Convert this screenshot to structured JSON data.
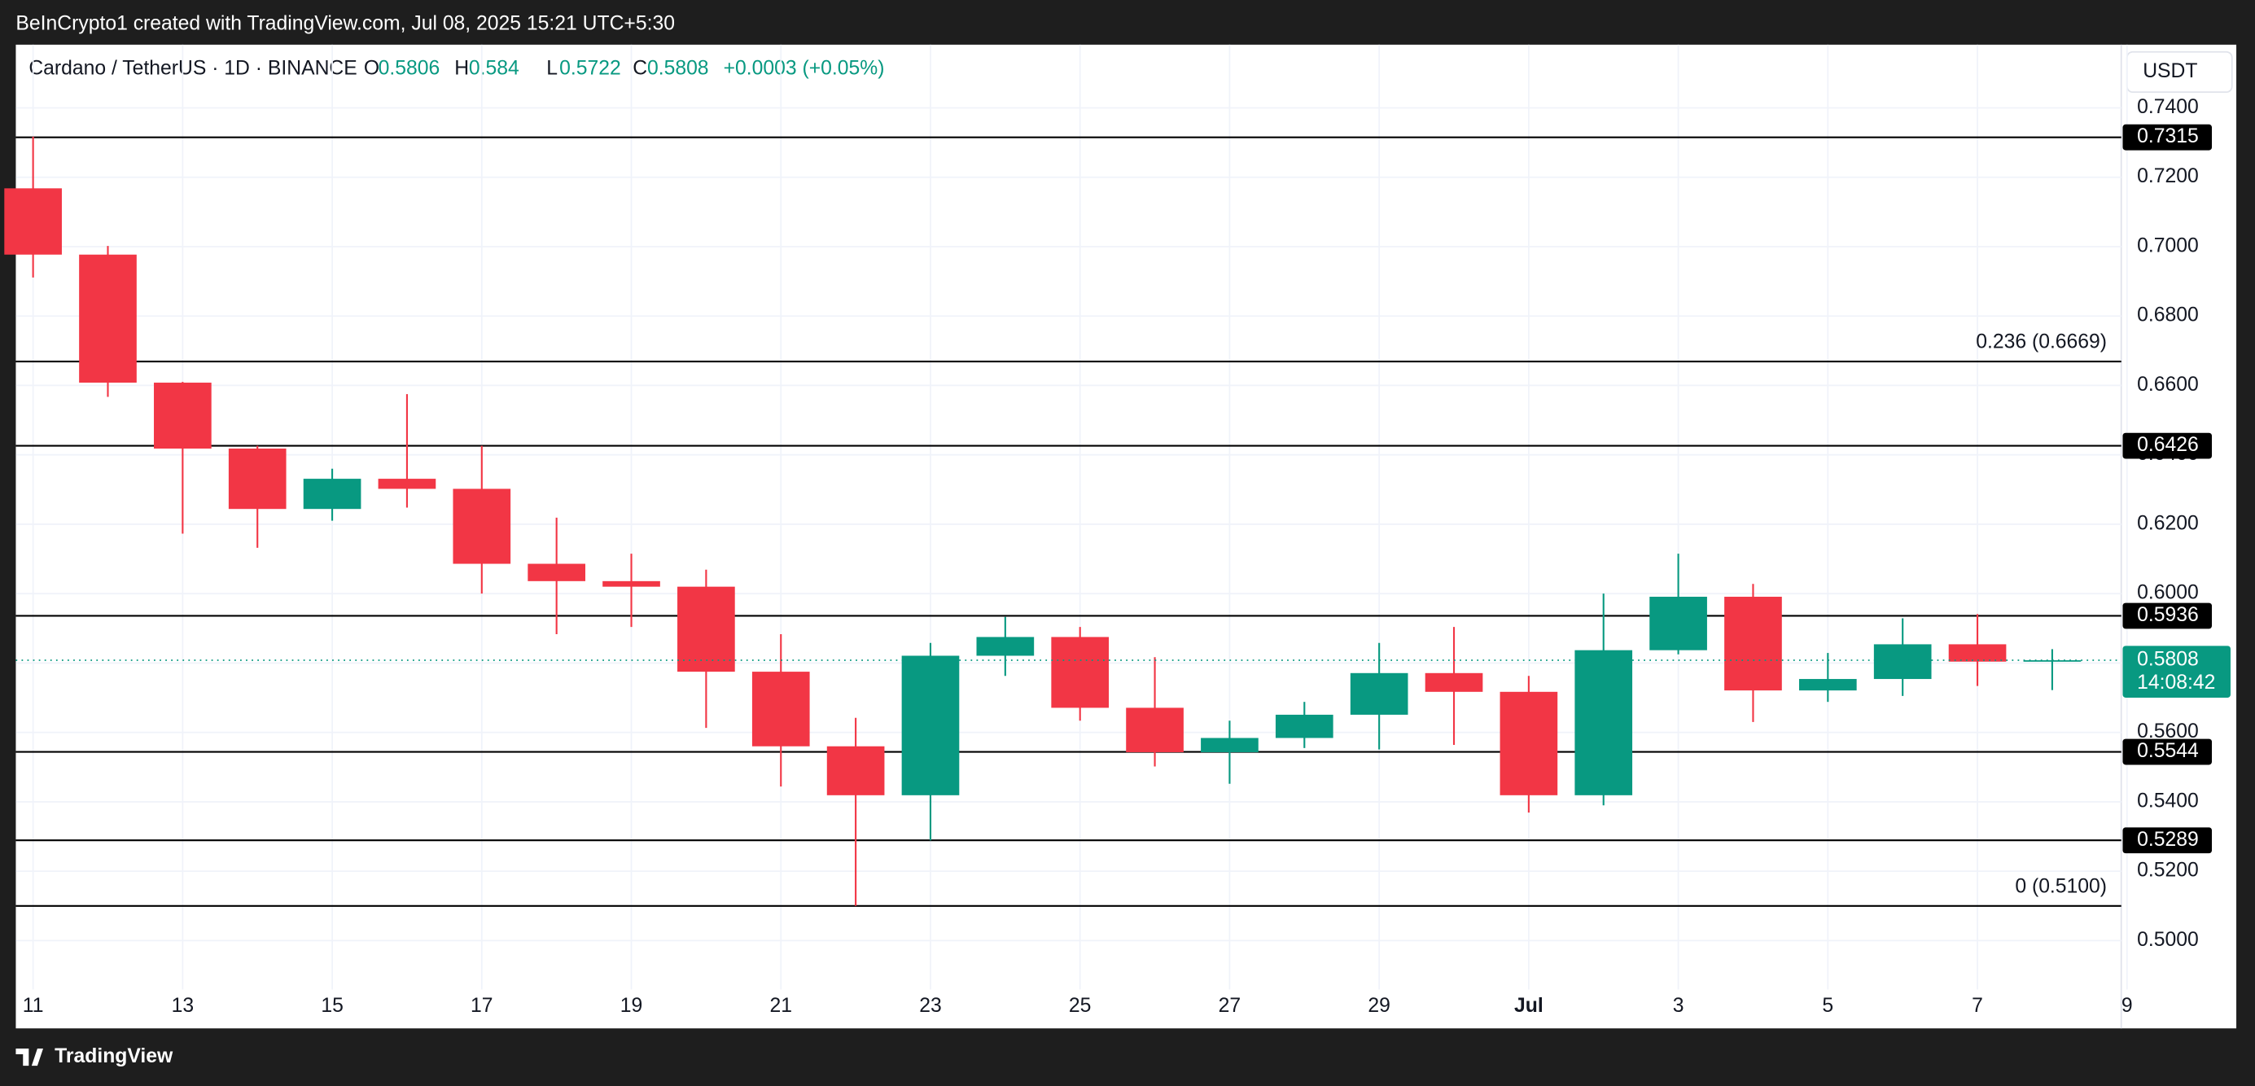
{
  "header": {
    "attribution": "BeInCrypto1 created with TradingView.com, Jul 08, 2025 15:21 UTC+5:30",
    "symbol": "Cardano / TetherUS · 1D · BINANCE",
    "open_label": "O",
    "high_label": "H",
    "low_label": "L",
    "close_label": "C",
    "change": "+0.0003 (+0.05%)",
    "currency": "USDT",
    "brand": "TradingView"
  },
  "chart_data": {
    "type": "candlestick",
    "categories": [
      "11",
      null,
      "13",
      null,
      "15",
      null,
      "17",
      null,
      "19",
      null,
      "21",
      null,
      "23",
      null,
      "25",
      null,
      "27",
      null,
      "29",
      null,
      "Jul",
      null,
      "3",
      null,
      "5",
      null,
      "7",
      null,
      "9"
    ],
    "open": [
      0.7168,
      0.6977,
      0.6608,
      0.6418,
      0.6244,
      0.6331,
      0.6302,
      0.6086,
      0.6036,
      0.602,
      0.5775,
      0.556,
      0.5419,
      0.5821,
      0.5875,
      0.5671,
      0.5543,
      0.5584,
      0.5651,
      0.5771,
      0.5717,
      0.5419,
      0.5837,
      0.5991,
      0.5721,
      0.5754,
      0.5854,
      0.5806,
      null
    ],
    "high": [
      0.7317,
      0.7002,
      0.661,
      0.6426,
      0.636,
      0.6575,
      0.6426,
      0.6219,
      0.6115,
      0.6069,
      0.5883,
      0.5642,
      0.5858,
      0.5933,
      0.5904,
      0.5817,
      0.5634,
      0.5688,
      0.5858,
      0.5904,
      0.5763,
      0.6,
      0.6115,
      0.6028,
      0.5829,
      0.5929,
      0.5941,
      0.584,
      null
    ],
    "low": [
      0.6911,
      0.6567,
      0.6173,
      0.6132,
      0.621,
      0.6248,
      0.6,
      0.5883,
      0.5904,
      0.5613,
      0.5444,
      0.51,
      0.5289,
      0.5763,
      0.5634,
      0.5502,
      0.5452,
      0.5555,
      0.5551,
      0.5564,
      0.5369,
      0.539,
      0.5825,
      0.563,
      0.5688,
      0.5705,
      0.5734,
      0.5722,
      null
    ],
    "close": [
      0.6977,
      0.6608,
      0.6418,
      0.6244,
      0.6331,
      0.6302,
      0.6086,
      0.6036,
      0.602,
      0.5775,
      0.556,
      0.5419,
      0.5821,
      0.5875,
      0.5671,
      0.5543,
      0.5584,
      0.5651,
      0.5771,
      0.5717,
      0.5419,
      0.5837,
      0.5991,
      0.5721,
      0.5754,
      0.5854,
      0.5804,
      0.5808,
      null
    ],
    "up_color": "#089981",
    "down_color": "#f23645",
    "ylim": [
      0.4859,
      0.7582
    ],
    "yticks": [
      {
        "value": 0.5,
        "label": "0.5000"
      },
      {
        "value": 0.52,
        "label": "0.5200"
      },
      {
        "value": 0.54,
        "label": "0.5400"
      },
      {
        "value": 0.56,
        "label": "0.5600"
      },
      {
        "value": 0.58,
        "label": "0.5800"
      },
      {
        "value": 0.6,
        "label": "0.6000"
      },
      {
        "value": 0.62,
        "label": "0.6200"
      },
      {
        "value": 0.64,
        "label": "0.6400"
      },
      {
        "value": 0.66,
        "label": "0.6600"
      },
      {
        "value": 0.68,
        "label": "0.6800"
      },
      {
        "value": 0.7,
        "label": "0.7000"
      },
      {
        "value": 0.72,
        "label": "0.7200"
      },
      {
        "value": 0.74,
        "label": "0.7400"
      }
    ],
    "grid": true,
    "levels": [
      0.7315,
      0.6426,
      0.5936,
      0.5544,
      0.5289
    ],
    "fib_levels": [
      {
        "value": 0.6669,
        "label": "0.236 (0.6669)"
      },
      {
        "value": 0.51,
        "label": "0 (0.5100)"
      }
    ],
    "countdown": "14:08:42"
  }
}
